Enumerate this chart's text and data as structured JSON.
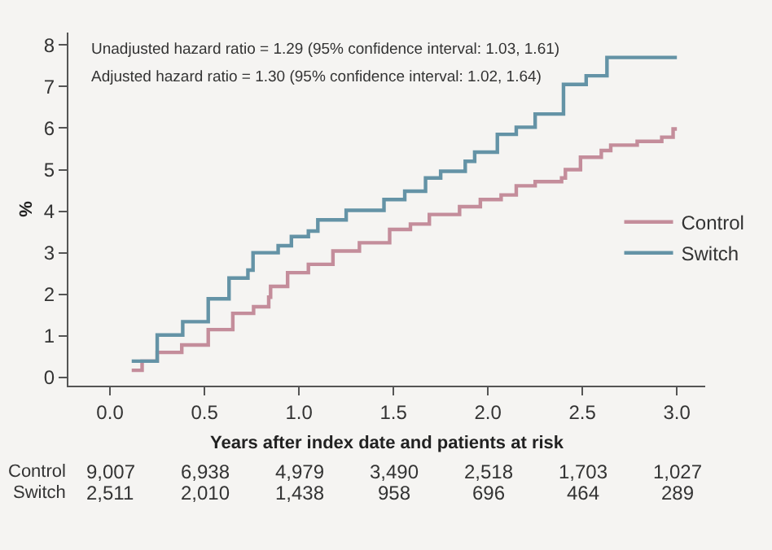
{
  "chart_data": {
    "type": "step",
    "xlabel": "Years after index date and patients at risk",
    "ylabel": "%",
    "series": [
      {
        "name": "Control",
        "color": "#c48d9b",
        "x": [
          0.115,
          0.17,
          0.25,
          0.38,
          0.52,
          0.65,
          0.76,
          0.84,
          0.85,
          0.94,
          1.05,
          1.18,
          1.32,
          1.48,
          1.59,
          1.69,
          1.85,
          1.96,
          2.07,
          2.15,
          2.25,
          2.39,
          2.41,
          2.49,
          2.6,
          2.65,
          2.79,
          2.92,
          2.98,
          3.0
        ],
        "values": [
          0.17,
          0.39,
          0.6,
          0.78,
          1.15,
          1.54,
          1.7,
          1.93,
          2.19,
          2.52,
          2.72,
          3.04,
          3.24,
          3.56,
          3.69,
          3.92,
          4.11,
          4.28,
          4.39,
          4.61,
          4.71,
          4.8,
          5.0,
          5.3,
          5.46,
          5.59,
          5.68,
          5.78,
          5.98,
          5.98
        ]
      },
      {
        "name": "Switch",
        "color": "#6493a6",
        "x": [
          0.115,
          0.25,
          0.385,
          0.52,
          0.63,
          0.73,
          0.757,
          0.89,
          0.96,
          1.05,
          1.1,
          1.25,
          1.45,
          1.56,
          1.67,
          1.75,
          1.88,
          1.93,
          2.05,
          2.15,
          2.25,
          2.4,
          2.52,
          2.63,
          3.0
        ],
        "values": [
          0.39,
          1.02,
          1.34,
          1.89,
          2.39,
          2.58,
          3.0,
          3.17,
          3.39,
          3.52,
          3.79,
          4.02,
          4.28,
          4.48,
          4.8,
          4.96,
          5.2,
          5.42,
          5.85,
          6.02,
          6.34,
          7.05,
          7.26,
          7.7,
          7.7
        ]
      }
    ],
    "xlim": [
      -0.22,
      3.15
    ],
    "xticks": [
      {
        "value": 0,
        "label": "0.0"
      },
      0.5,
      {
        "value": 1,
        "label": "1.0"
      },
      1.5,
      {
        "value": 2,
        "label": "2.0"
      },
      2.5,
      {
        "value": 3,
        "label": "3.0"
      }
    ],
    "ylim": [
      -0.2,
      8.3
    ],
    "yticks": [
      0,
      1,
      2,
      3,
      4,
      5,
      6,
      7,
      8
    ],
    "grid": false,
    "legend": "right",
    "marker": "none",
    "line_style": "solid",
    "annotations": [
      "Unadjusted hazard ratio = 1.29 (95% confidence interval: 1.03, 1.61)",
      "Adjusted hazard ratio = 1.30 (95% confidence interval: 1.02, 1.64)",
      "Control",
      "9,007",
      "6,938",
      "4,979",
      "3,490",
      "2,518",
      "1,703",
      "1,027",
      "Switch",
      "2,511",
      "2,010",
      "1,438",
      "958",
      "696",
      "464",
      "289"
    ]
  }
}
